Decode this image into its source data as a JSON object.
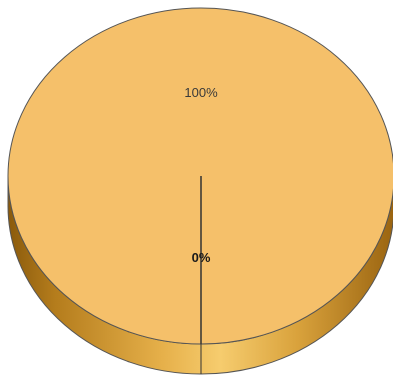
{
  "chart_data": {
    "type": "pie",
    "style": "3d",
    "slices": [
      {
        "label": "100%",
        "value": 100,
        "color": "#f5c06a"
      },
      {
        "label": "0%",
        "value": 0,
        "color": "#f5c06a"
      }
    ],
    "legend": "none"
  },
  "colors": {
    "top_fill": "#f5c06a",
    "side_dark": "#b07a18",
    "side_light": "#f0c060",
    "outline": "#555555"
  }
}
